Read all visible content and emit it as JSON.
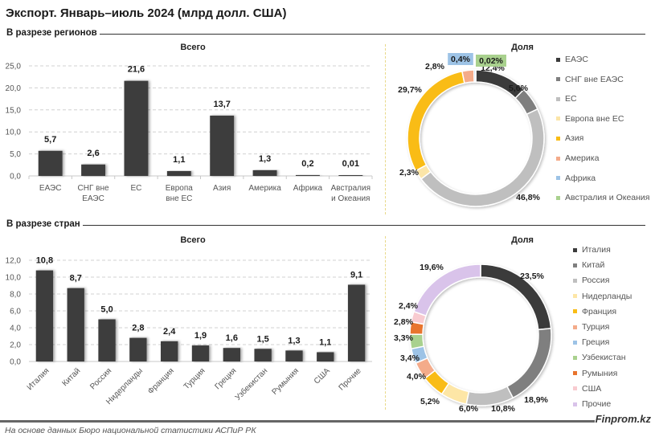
{
  "title": "Экспорт. Январь–июль 2024 (млрд долл. США)",
  "sections": {
    "regions": "В разрезе регионов",
    "countries": "В разрезе стран"
  },
  "footer": {
    "source": "На основе данных Бюро национальной статистики АСПиР РК",
    "brand": "Finprom.kz"
  },
  "chart_data": [
    {
      "id": "regions-bar",
      "type": "bar",
      "title": "Всего",
      "xlabel": "",
      "ylabel": "",
      "categories": [
        "ЕАЭС",
        "СНГ вне ЕАЭС",
        "ЕС",
        "Европа вне ЕС",
        "Азия",
        "Америка",
        "Африка",
        "Австралия и Океания"
      ],
      "category_lines": [
        [
          "ЕАЭС"
        ],
        [
          "СНГ вне",
          "ЕАЭС"
        ],
        [
          "ЕС"
        ],
        [
          "Европа",
          "вне ЕС"
        ],
        [
          "Азия"
        ],
        [
          "Америка"
        ],
        [
          "Африка"
        ],
        [
          "Австралия",
          "и Океания"
        ]
      ],
      "values": [
        5.7,
        2.6,
        21.6,
        1.1,
        13.7,
        1.3,
        0.2,
        0.01
      ],
      "value_labels": [
        "5,7",
        "2,6",
        "21,6",
        "1,1",
        "13,7",
        "1,3",
        "0,2",
        "0,01"
      ],
      "ylim": [
        0,
        25
      ],
      "yticks": [
        0,
        5,
        10,
        15,
        20,
        25
      ],
      "ytick_labels": [
        "0,0",
        "5,0",
        "10,0",
        "15,0",
        "20,0",
        "25,0"
      ],
      "grid": true,
      "bar_color": "#3d3d3d"
    },
    {
      "id": "regions-donut",
      "type": "pie",
      "title": "Доля",
      "legend": "right",
      "categories": [
        "ЕАЭС",
        "СНГ вне ЕАЭС",
        "ЕС",
        "Европа вне ЕС",
        "Азия",
        "Америка",
        "Африка",
        "Австралия и Океания"
      ],
      "values": [
        12.4,
        5.6,
        46.8,
        2.3,
        29.7,
        2.8,
        0.4,
        0.02
      ],
      "value_labels": [
        "12,4%",
        "5,6%",
        "46,8%",
        "2,3%",
        "29,7%",
        "2,8%",
        "0,4%",
        "0,02%"
      ],
      "colors": [
        "#3b3b3b",
        "#7f7f7f",
        "#bfbfbf",
        "#fbe5a8",
        "#f9bc15",
        "#f4ab8a",
        "#9dc3e6",
        "#a9d18e"
      ]
    },
    {
      "id": "countries-bar",
      "type": "bar",
      "title": "Всего",
      "xlabel": "",
      "ylabel": "",
      "categories": [
        "Италия",
        "Китай",
        "Россия",
        "Нидерланды",
        "Франция",
        "Турция",
        "Греция",
        "Узбекистан",
        "Румыния",
        "США",
        "Прочие"
      ],
      "values": [
        10.8,
        8.7,
        5.0,
        2.8,
        2.4,
        1.9,
        1.6,
        1.5,
        1.3,
        1.1,
        9.1
      ],
      "value_labels": [
        "10,8",
        "8,7",
        "5,0",
        "2,8",
        "2,4",
        "1,9",
        "1,6",
        "1,5",
        "1,3",
        "1,1",
        "9,1"
      ],
      "ylim": [
        0,
        12
      ],
      "yticks": [
        0,
        2,
        4,
        6,
        8,
        10,
        12
      ],
      "ytick_labels": [
        "0,0",
        "2,0",
        "4,0",
        "6,0",
        "8,0",
        "10,0",
        "12,0"
      ],
      "grid": true,
      "bar_color": "#3d3d3d"
    },
    {
      "id": "countries-donut",
      "type": "pie",
      "title": "Доля",
      "legend": "right",
      "categories": [
        "Италия",
        "Китай",
        "Россия",
        "Нидерланды",
        "Франция",
        "Турция",
        "Греция",
        "Узбекистан",
        "Румыния",
        "США",
        "Прочие"
      ],
      "values": [
        23.5,
        18.9,
        10.8,
        6.0,
        5.2,
        4.0,
        3.4,
        3.3,
        2.8,
        2.4,
        19.6
      ],
      "value_labels": [
        "23,5%",
        "18,9%",
        "10,8%",
        "6,0%",
        "5,2%",
        "4,0%",
        "3,4%",
        "3,3%",
        "2,8%",
        "2,4%",
        "19,6%"
      ],
      "colors": [
        "#3b3b3b",
        "#7f7f7f",
        "#bfbfbf",
        "#fde6a6",
        "#f9bc15",
        "#f4ab8a",
        "#9dc3e6",
        "#a9d18e",
        "#e8742d",
        "#f8cbd0",
        "#d9c3ea"
      ]
    }
  ]
}
